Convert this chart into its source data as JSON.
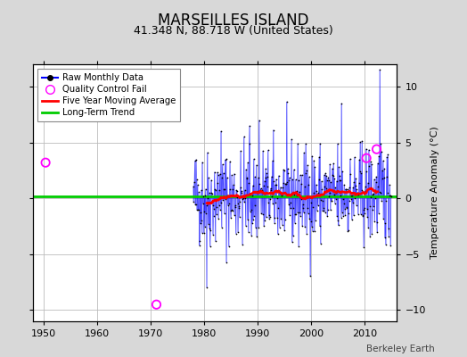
{
  "title": "MARSEILLES ISLAND",
  "subtitle": "41.348 N, 88.718 W (United States)",
  "ylabel": "Temperature Anomaly (°C)",
  "watermark": "Berkeley Earth",
  "xlim": [
    1948,
    2016
  ],
  "ylim": [
    -11,
    12
  ],
  "yticks": [
    -10,
    -5,
    0,
    5,
    10
  ],
  "xticks": [
    1950,
    1960,
    1970,
    1980,
    1990,
    2000,
    2010
  ],
  "data_start_year": 1978,
  "data_end_year": 2015,
  "bg_color": "#d8d8d8",
  "plot_bg_color": "#ffffff",
  "grid_color": "#bbbbbb",
  "line_color": "#0000ff",
  "ma_color": "#ff0000",
  "trend_color": "#00cc00",
  "qc_color": "#ff00ff",
  "long_term_trend_y": 0.18,
  "qc_fails": [
    [
      1950.4,
      3.2
    ],
    [
      1971.1,
      -9.5
    ],
    [
      2010.3,
      3.6
    ],
    [
      2012.2,
      4.4
    ]
  ],
  "title_fontsize": 12,
  "subtitle_fontsize": 9,
  "tick_fontsize": 8,
  "ylabel_fontsize": 8
}
